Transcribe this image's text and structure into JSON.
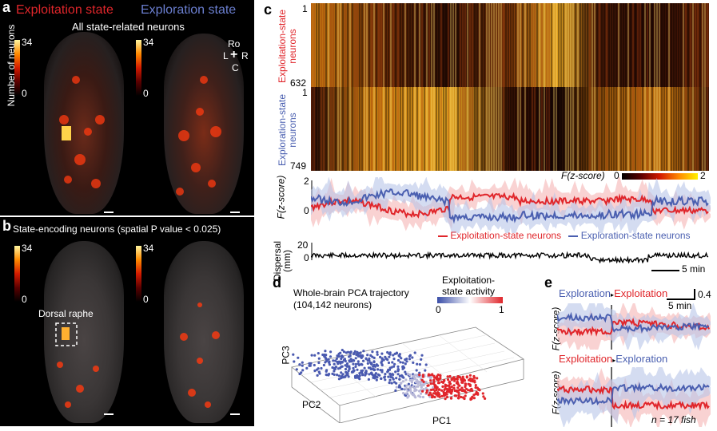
{
  "panel_a": {
    "letter": "a",
    "title_left": "Exploitation state",
    "title_right": "Exploration state",
    "subtitle": "All state-related neurons",
    "ylabel": "Number of neurons",
    "cbar_max": "34",
    "cbar_min": "0",
    "compass": {
      "top": "Ro",
      "left": "L",
      "right": "R",
      "bottom": "C"
    }
  },
  "panel_b": {
    "letter": "b",
    "title": "State-encoding neurons (spatial P value < 0.025)",
    "cbar_max": "34",
    "cbar_min": "0",
    "roi_label": "Dorsal raphe"
  },
  "panel_c": {
    "letter": "c",
    "ylabel_top": "Exploitation-state neurons",
    "ylabel_bottom": "Exploration-state neurons",
    "tick_1a": "1",
    "tick_632": "632",
    "tick_1b": "1",
    "tick_749": "749",
    "cbar_label": "F(z-score)",
    "cbar_min": "0",
    "cbar_max": "2",
    "trace_ylabel": "F(z-score)",
    "trace_ticks": [
      "2",
      "0"
    ],
    "legend_red": "Exploitation-state neurons",
    "legend_blue": "Exploration-state neurons",
    "dispersal_ylabel": "Dispersal (mm)",
    "dispersal_ticks": [
      "20",
      "0"
    ],
    "scale_label": "5 min"
  },
  "panel_d": {
    "letter": "d",
    "title_line1": "Whole-brain PCA trajectory",
    "title_line2": "(104,142 neurons)",
    "cbar_label_line1": "Exploitation-",
    "cbar_label_line2": "state activity",
    "cbar_min": "0",
    "cbar_max": "1",
    "axis_pc1": "PC1",
    "axis_pc2": "PC2",
    "axis_pc3": "PC3"
  },
  "panel_e": {
    "letter": "e",
    "top_from": "Exploration",
    "top_to": "Exploitation",
    "bottom_from": "Exploitation",
    "bottom_to": "Exploration",
    "scale_time": "5 min",
    "scale_value": "0.4",
    "ylabel": "F(z-score)",
    "n_label": "n = 17 fish"
  },
  "colors": {
    "red": "#e0262b",
    "blue": "#4a5fb0",
    "black": "#000000"
  }
}
